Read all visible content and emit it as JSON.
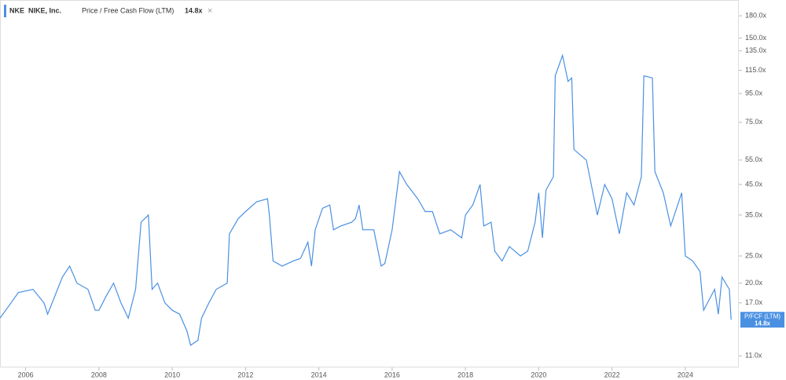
{
  "chart_data": {
    "type": "line",
    "legend": {
      "ticker": "NKE",
      "company": "NIKE, Inc.",
      "metric": "Price / Free Cash Flow (LTM)",
      "value": "14.8x"
    },
    "log_scale": true,
    "x": [
      2005.3,
      2005.6,
      2005.8,
      2006.2,
      2006.5,
      2006.6,
      2006.8,
      2007.0,
      2007.2,
      2007.4,
      2007.7,
      2007.9,
      2008.0,
      2008.2,
      2008.4,
      2008.6,
      2008.8,
      2009.0,
      2009.15,
      2009.35,
      2009.45,
      2009.6,
      2009.8,
      2010.0,
      2010.2,
      2010.4,
      2010.5,
      2010.7,
      2010.8,
      2011.0,
      2011.2,
      2011.5,
      2011.56,
      2011.8,
      2012.0,
      2012.3,
      2012.6,
      2012.65,
      2012.75,
      2013.0,
      2013.3,
      2013.5,
      2013.7,
      2013.8,
      2013.9,
      2014.1,
      2014.3,
      2014.4,
      2014.6,
      2014.9,
      2015.0,
      2015.1,
      2015.2,
      2015.5,
      2015.7,
      2015.8,
      2016.0,
      2016.2,
      2016.4,
      2016.7,
      2016.9,
      2017.1,
      2017.3,
      2017.6,
      2017.9,
      2018.0,
      2018.2,
      2018.4,
      2018.5,
      2018.7,
      2018.8,
      2019.0,
      2019.2,
      2019.5,
      2019.7,
      2019.9,
      2020.0,
      2020.1,
      2020.2,
      2020.4,
      2020.45,
      2020.65,
      2020.8,
      2020.9,
      2020.96,
      2021.3,
      2021.6,
      2021.8,
      2022.0,
      2022.2,
      2022.4,
      2022.6,
      2022.8,
      2022.87,
      2023.1,
      2023.17,
      2023.4,
      2023.6,
      2023.9,
      2024.0,
      2024.2,
      2024.4,
      2024.5,
      2024.8,
      2024.9,
      2025.0,
      2025.2,
      2025.25
    ],
    "series": [
      {
        "name": "P/FCF (LTM)",
        "color": "#4a90e2",
        "values": [
          15,
          17,
          18.5,
          19,
          17,
          15.5,
          18,
          21,
          23,
          20,
          19,
          16,
          16,
          18,
          20,
          17,
          15,
          19,
          33,
          35,
          19,
          20,
          17,
          16,
          15.5,
          13.5,
          12,
          12.5,
          15,
          17,
          19,
          20,
          30,
          34,
          36,
          39,
          40,
          35,
          24,
          23,
          24,
          24.5,
          28,
          23,
          31,
          37,
          38,
          31,
          32,
          33,
          34,
          38,
          31,
          31,
          23,
          23.5,
          31,
          50,
          45,
          40,
          36,
          36,
          30,
          31,
          29,
          35,
          38,
          45,
          32,
          33,
          26,
          24,
          27,
          25,
          26,
          33,
          42,
          29,
          43,
          48,
          110,
          130,
          105,
          108,
          60,
          55,
          35,
          45,
          40,
          30,
          42,
          38,
          48,
          110,
          108,
          50,
          42,
          32,
          42,
          25,
          24,
          22,
          16,
          19,
          15.5,
          21,
          19,
          14.8
        ]
      }
    ],
    "xlim": [
      2005.3,
      2025.46
    ],
    "ylim": [
      10,
      205
    ],
    "xticks": [
      2006,
      2008,
      2010,
      2012,
      2014,
      2016,
      2018,
      2020,
      2022,
      2024
    ],
    "yticks": [
      {
        "value": 180,
        "label": "180.0x"
      },
      {
        "value": 150,
        "label": "150.0x"
      },
      {
        "value": 135,
        "label": "135.0x"
      },
      {
        "value": 115,
        "label": "115.0x"
      },
      {
        "value": 95,
        "label": "95.0x"
      },
      {
        "value": 75,
        "label": "75.0x"
      },
      {
        "value": 55,
        "label": "55.0x"
      },
      {
        "value": 45,
        "label": "45.0x"
      },
      {
        "value": 35,
        "label": "35.0x"
      },
      {
        "value": 25,
        "label": "25.0x"
      },
      {
        "value": 20,
        "label": "20.0x"
      },
      {
        "value": 17,
        "label": "17.0x"
      },
      {
        "value": 11,
        "label": "11.0x"
      }
    ]
  }
}
